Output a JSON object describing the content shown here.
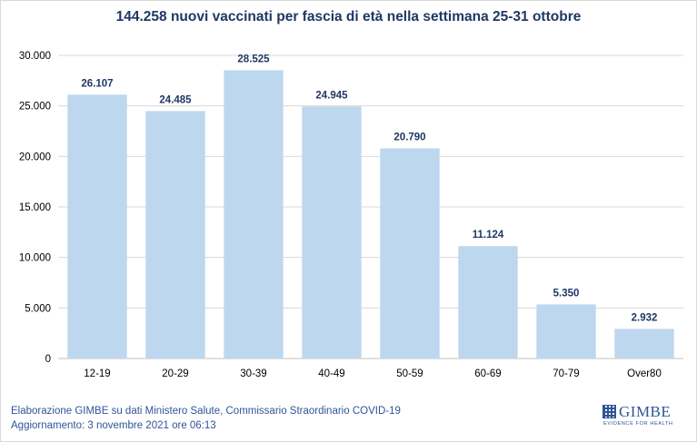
{
  "chart_data": {
    "type": "bar",
    "title": "144.258 nuovi vaccinati per fascia di età nella settimana 25-31 ottobre",
    "categories": [
      "12-19",
      "20-29",
      "30-39",
      "40-49",
      "50-59",
      "60-69",
      "70-79",
      "Over80"
    ],
    "values": [
      26107,
      24485,
      28525,
      24945,
      20790,
      11124,
      5350,
      2932
    ],
    "value_labels": [
      "26.107",
      "24.485",
      "28.525",
      "24.945",
      "20.790",
      "11.124",
      "5.350",
      "2.932"
    ],
    "ylim": [
      0,
      30000
    ],
    "yticks": [
      0,
      5000,
      10000,
      15000,
      20000,
      25000,
      30000
    ],
    "ytick_labels": [
      "0",
      "5.000",
      "10.000",
      "15.000",
      "20.000",
      "25.000",
      "30.000"
    ],
    "xlabel": "",
    "ylabel": "",
    "grid": true,
    "bar_color": "#bdd7ee",
    "grid_color": "#d9d9d9",
    "label_color": "#1f3864"
  },
  "footer": {
    "line1": "Elaborazione GIMBE su dati Ministero Salute, Commissario Straordinario  COVID-19",
    "line2": "Aggiornamento:  3 novembre  2021 ore 06:13"
  },
  "logo": {
    "name": "GIMBE",
    "tagline": "EVIDENCE FOR HEALTH",
    "icon": "grid-square-icon"
  }
}
